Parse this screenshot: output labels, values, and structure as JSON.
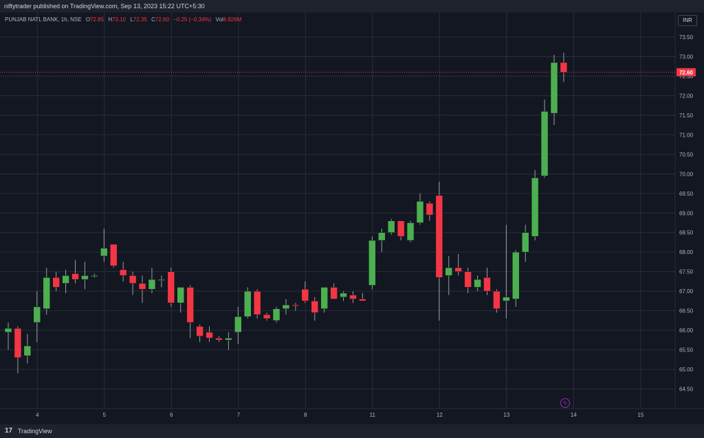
{
  "header": {
    "published": "niftytrader published on TradingView.com, Sep 13, 2023 15:22 UTC+5:30"
  },
  "legend": {
    "symbol": "PUNJAB NATL BANK, 1h, NSE",
    "open_label": "O",
    "open": "72.85",
    "high_label": "H",
    "high": "73.10",
    "low_label": "L",
    "low": "72.35",
    "close_label": "C",
    "close": "72.60",
    "change": "−0.25 (−0.34%)",
    "volume_label": "Vol",
    "volume": "8.826M"
  },
  "currency": "INR",
  "footer": {
    "brand": "TradingView",
    "logo_glyph": "17"
  },
  "icons": {
    "flash": "ϟ"
  },
  "colors": {
    "up": "#4caf50",
    "down": "#f23645",
    "background": "#131722",
    "grid": "#2a2e39",
    "last_price": "#f23645"
  },
  "chart_data": {
    "type": "candlestick",
    "symbol": "PUNJAB NATL BANK",
    "interval": "1h",
    "exchange": "NSE",
    "last_price": 72.6,
    "last_price_label": "72.60",
    "ylim": [
      64.2,
      73.9
    ],
    "yticks": [
      "64.50",
      "65.00",
      "65.50",
      "66.00",
      "66.50",
      "67.00",
      "67.50",
      "68.00",
      "68.50",
      "69.00",
      "69.50",
      "70.00",
      "70.50",
      "71.00",
      "71.50",
      "72.00",
      "72.50",
      "73.00",
      "73.50"
    ],
    "xticks": [
      {
        "label": "4",
        "index": 3
      },
      {
        "label": "5",
        "index": 10
      },
      {
        "label": "6",
        "index": 17
      },
      {
        "label": "7",
        "index": 24
      },
      {
        "label": "8",
        "index": 31
      },
      {
        "label": "11",
        "index": 38
      },
      {
        "label": "12",
        "index": 45
      },
      {
        "label": "13",
        "index": 52
      },
      {
        "label": "14",
        "index": 59
      },
      {
        "label": "15",
        "index": 66
      }
    ],
    "candles": [
      {
        "o": 65.95,
        "h": 66.2,
        "l": 65.5,
        "c": 66.05
      },
      {
        "o": 66.05,
        "h": 66.1,
        "l": 64.9,
        "c": 65.3
      },
      {
        "o": 65.35,
        "h": 65.9,
        "l": 65.15,
        "c": 65.6
      },
      {
        "o": 66.2,
        "h": 67.0,
        "l": 65.7,
        "c": 66.6
      },
      {
        "o": 66.55,
        "h": 67.6,
        "l": 66.4,
        "c": 67.35
      },
      {
        "o": 67.35,
        "h": 67.5,
        "l": 67.0,
        "c": 67.1
      },
      {
        "o": 67.2,
        "h": 67.55,
        "l": 66.95,
        "c": 67.4
      },
      {
        "o": 67.45,
        "h": 67.8,
        "l": 67.2,
        "c": 67.3
      },
      {
        "o": 67.3,
        "h": 67.75,
        "l": 67.05,
        "c": 67.4
      },
      {
        "o": 67.4,
        "h": 67.45,
        "l": 67.35,
        "c": 67.4
      },
      {
        "o": 67.9,
        "h": 68.6,
        "l": 67.75,
        "c": 68.1
      },
      {
        "o": 68.2,
        "h": 68.2,
        "l": 67.6,
        "c": 67.65
      },
      {
        "o": 67.55,
        "h": 67.75,
        "l": 67.25,
        "c": 67.4
      },
      {
        "o": 67.4,
        "h": 67.5,
        "l": 66.9,
        "c": 67.2
      },
      {
        "o": 67.2,
        "h": 67.4,
        "l": 66.7,
        "c": 67.05
      },
      {
        "o": 67.05,
        "h": 67.6,
        "l": 66.95,
        "c": 67.3
      },
      {
        "o": 67.3,
        "h": 67.4,
        "l": 67.1,
        "c": 67.3
      },
      {
        "o": 67.5,
        "h": 67.6,
        "l": 66.6,
        "c": 66.7
      },
      {
        "o": 66.7,
        "h": 67.1,
        "l": 66.45,
        "c": 67.1
      },
      {
        "o": 67.1,
        "h": 67.15,
        "l": 65.8,
        "c": 66.2
      },
      {
        "o": 66.1,
        "h": 66.15,
        "l": 65.7,
        "c": 65.85
      },
      {
        "o": 65.95,
        "h": 66.1,
        "l": 65.7,
        "c": 65.8
      },
      {
        "o": 65.8,
        "h": 65.85,
        "l": 65.7,
        "c": 65.75
      },
      {
        "o": 65.75,
        "h": 65.95,
        "l": 65.5,
        "c": 65.8
      },
      {
        "o": 65.95,
        "h": 66.6,
        "l": 65.65,
        "c": 66.35
      },
      {
        "o": 66.35,
        "h": 67.1,
        "l": 66.3,
        "c": 67.0
      },
      {
        "o": 67.0,
        "h": 67.05,
        "l": 66.3,
        "c": 66.4
      },
      {
        "o": 66.4,
        "h": 66.45,
        "l": 66.25,
        "c": 66.3
      },
      {
        "o": 66.25,
        "h": 66.6,
        "l": 66.2,
        "c": 66.55
      },
      {
        "o": 66.55,
        "h": 66.8,
        "l": 66.4,
        "c": 66.65
      },
      {
        "o": 66.65,
        "h": 66.7,
        "l": 66.5,
        "c": 66.62
      },
      {
        "o": 67.05,
        "h": 67.25,
        "l": 66.7,
        "c": 66.75
      },
      {
        "o": 66.75,
        "h": 66.85,
        "l": 66.25,
        "c": 66.45
      },
      {
        "o": 66.55,
        "h": 67.1,
        "l": 66.45,
        "c": 67.1
      },
      {
        "o": 67.1,
        "h": 67.2,
        "l": 66.8,
        "c": 66.8
      },
      {
        "o": 66.85,
        "h": 67.0,
        "l": 66.75,
        "c": 66.95
      },
      {
        "o": 66.9,
        "h": 67.0,
        "l": 66.7,
        "c": 66.8
      },
      {
        "o": 66.8,
        "h": 66.95,
        "l": 66.75,
        "c": 66.75
      },
      {
        "o": 67.15,
        "h": 68.4,
        "l": 67.05,
        "c": 68.3
      },
      {
        "o": 68.3,
        "h": 68.6,
        "l": 68.0,
        "c": 68.5
      },
      {
        "o": 68.5,
        "h": 68.85,
        "l": 68.45,
        "c": 68.8
      },
      {
        "o": 68.8,
        "h": 68.8,
        "l": 68.3,
        "c": 68.4
      },
      {
        "o": 68.3,
        "h": 68.8,
        "l": 68.25,
        "c": 68.75
      },
      {
        "o": 68.75,
        "h": 69.5,
        "l": 68.7,
        "c": 69.3
      },
      {
        "o": 69.25,
        "h": 69.3,
        "l": 68.8,
        "c": 68.95
      },
      {
        "o": 69.45,
        "h": 69.8,
        "l": 66.25,
        "c": 67.35
      },
      {
        "o": 67.4,
        "h": 67.9,
        "l": 66.9,
        "c": 67.6
      },
      {
        "o": 67.6,
        "h": 67.95,
        "l": 67.4,
        "c": 67.5
      },
      {
        "o": 67.5,
        "h": 67.6,
        "l": 66.95,
        "c": 67.1
      },
      {
        "o": 67.1,
        "h": 67.4,
        "l": 67.0,
        "c": 67.3
      },
      {
        "o": 67.35,
        "h": 67.6,
        "l": 66.9,
        "c": 67.0
      },
      {
        "o": 67.0,
        "h": 67.05,
        "l": 66.45,
        "c": 66.55
      },
      {
        "o": 66.75,
        "h": 68.7,
        "l": 66.3,
        "c": 66.85
      },
      {
        "o": 66.8,
        "h": 68.05,
        "l": 66.6,
        "c": 68.0
      },
      {
        "o": 68.0,
        "h": 68.7,
        "l": 67.75,
        "c": 68.5
      },
      {
        "o": 68.4,
        "h": 70.1,
        "l": 68.3,
        "c": 69.9
      },
      {
        "o": 69.95,
        "h": 71.9,
        "l": 69.9,
        "c": 71.6
      },
      {
        "o": 71.55,
        "h": 73.05,
        "l": 71.25,
        "c": 72.85
      },
      {
        "o": 72.85,
        "h": 73.1,
        "l": 72.35,
        "c": 72.6
      }
    ]
  }
}
